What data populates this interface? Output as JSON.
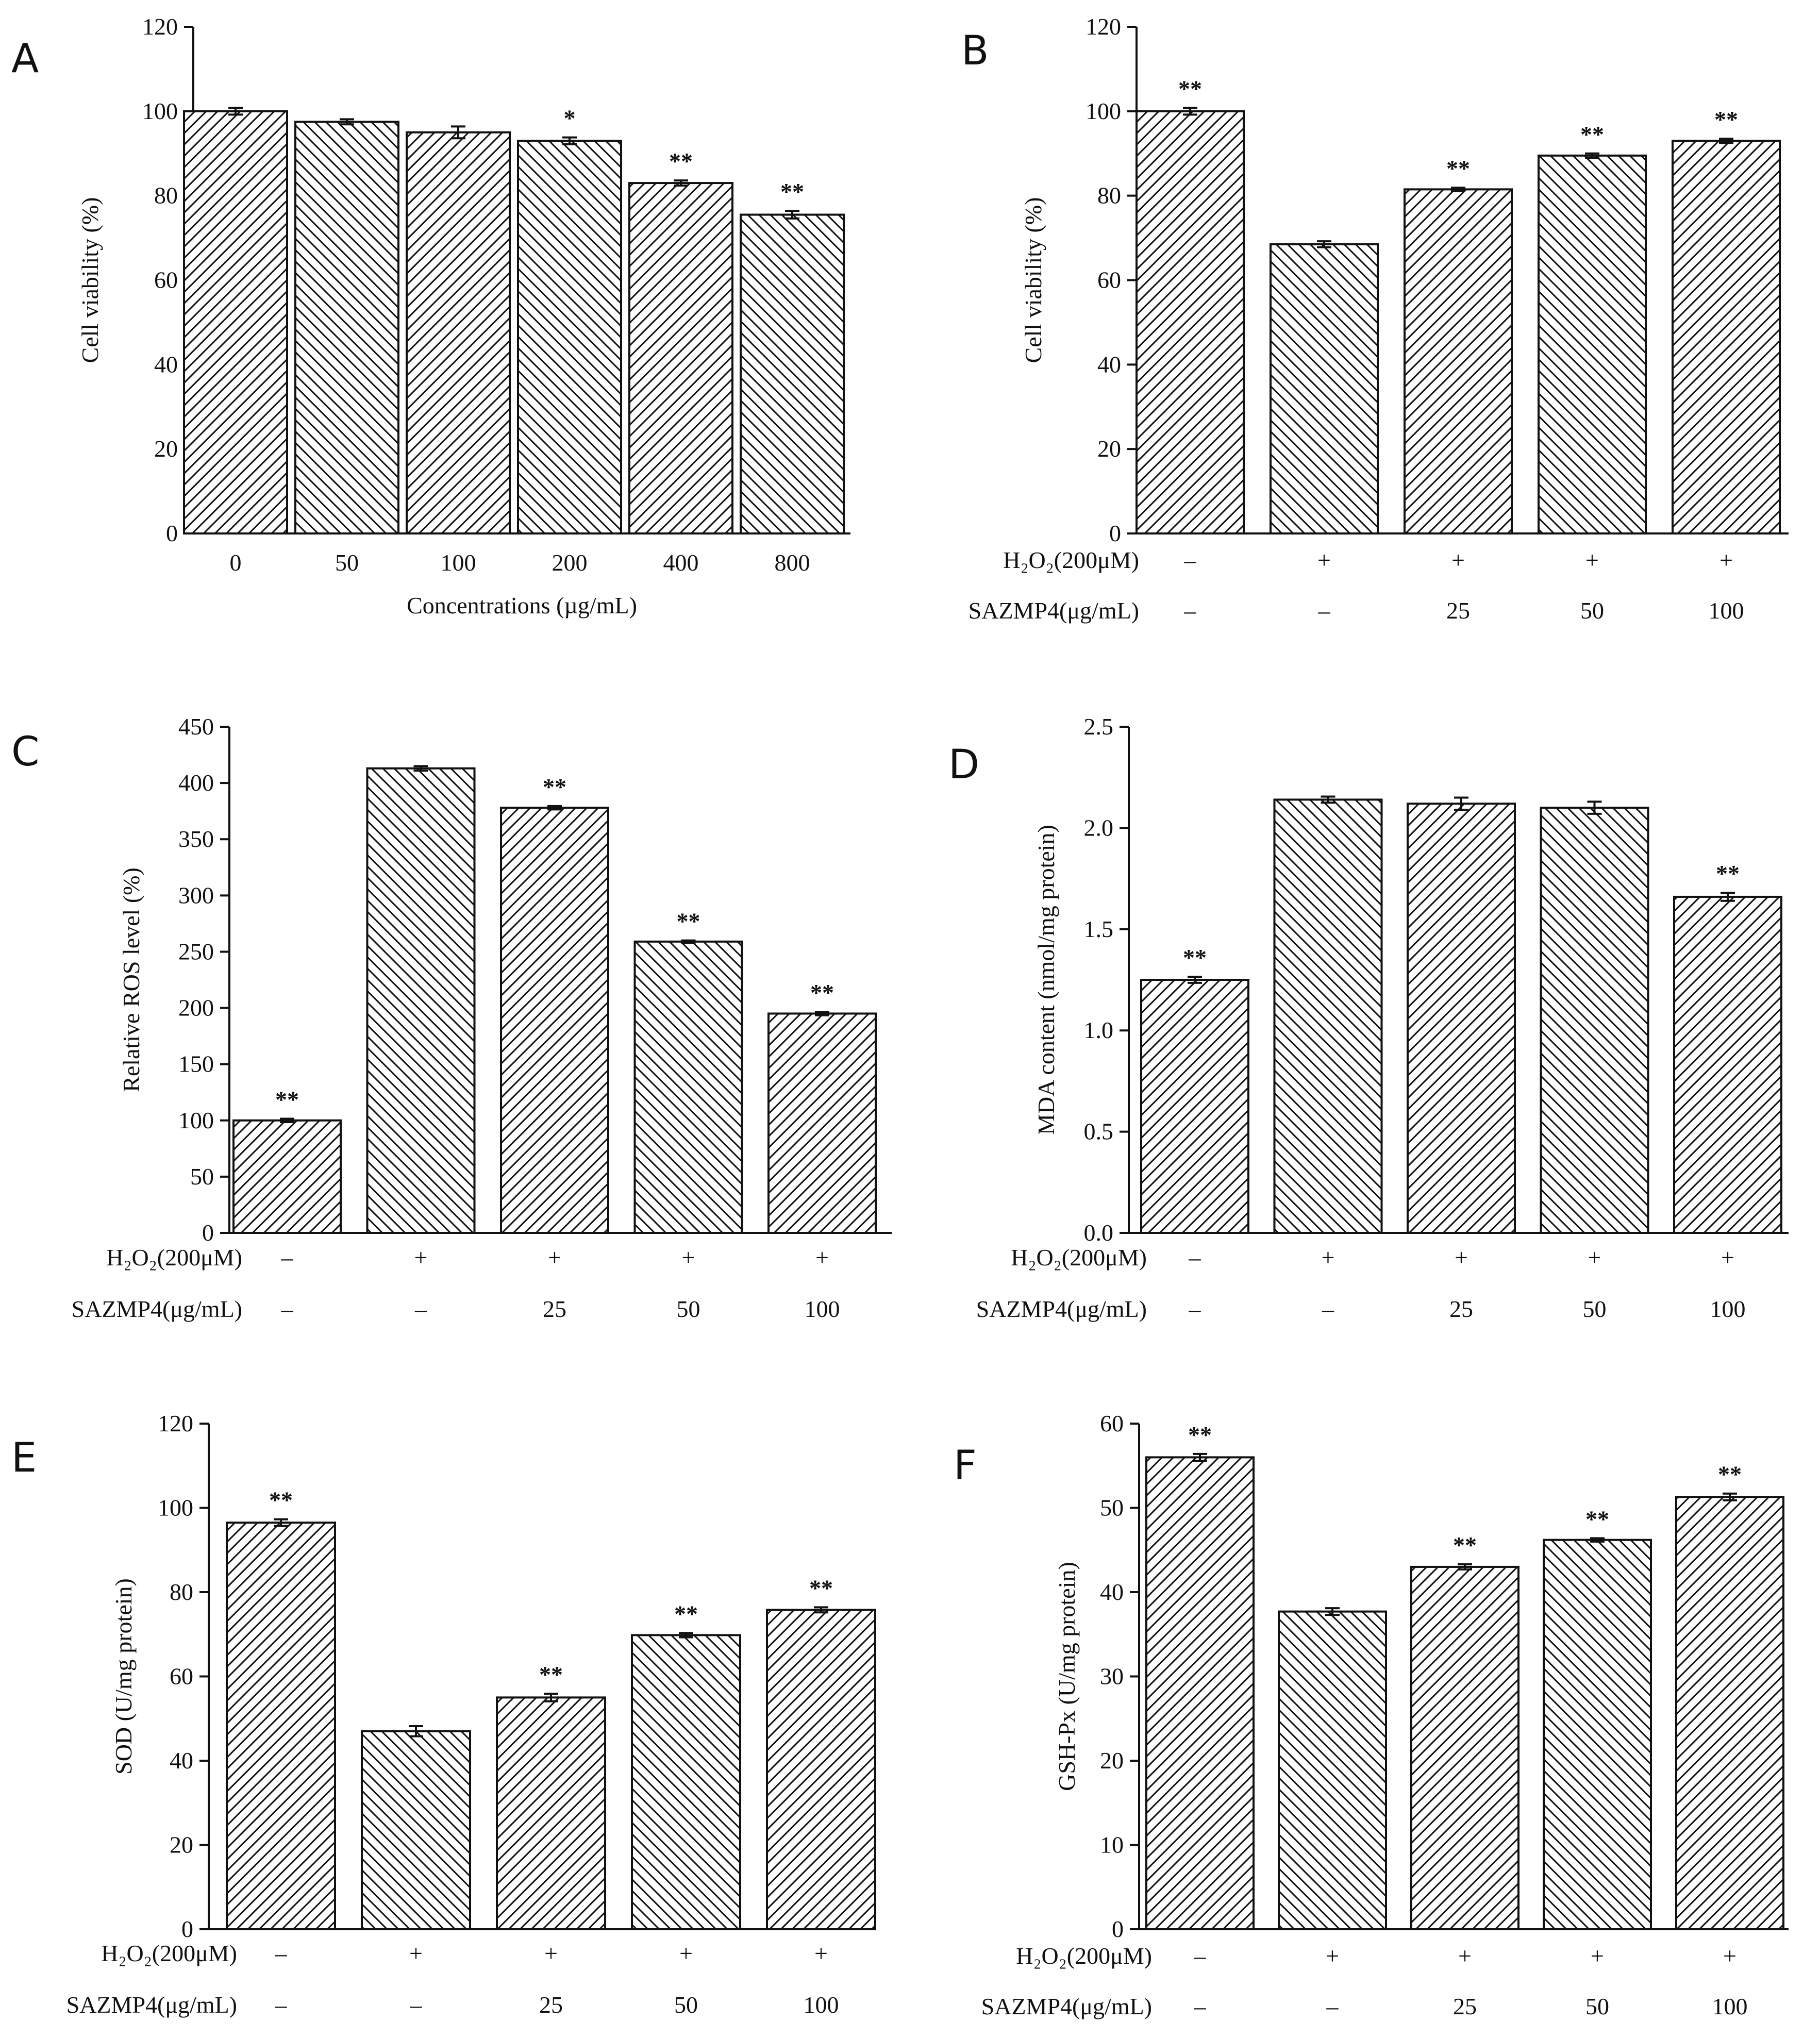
{
  "chart_data": [
    {
      "panel": "A",
      "type": "bar",
      "ylabel": "Cell viability (%)",
      "xlabel": "Concentrations (µg/mL)",
      "ylim": [
        0,
        120
      ],
      "yticks": [
        "0",
        "20",
        "40",
        "60",
        "80",
        "100",
        "120"
      ],
      "categories": [
        "0",
        "50",
        "100",
        "200",
        "400",
        "800"
      ],
      "values": [
        100,
        97.5,
        95,
        93,
        83,
        75.5
      ],
      "errors": [
        0.8,
        0.6,
        1.4,
        0.8,
        0.6,
        0.9
      ],
      "significance": [
        "",
        "",
        "",
        "*",
        "**",
        "**"
      ]
    },
    {
      "panel": "B",
      "type": "bar",
      "ylabel": "Cell viability (%)",
      "ylim": [
        0,
        120
      ],
      "yticks": [
        "0",
        "20",
        "40",
        "60",
        "80",
        "100",
        "120"
      ],
      "row1_label": "H₂O₂(200μM)",
      "row1": [
        "–",
        "+",
        "+",
        "+",
        "+"
      ],
      "row2_label": "SAZMP4(μg/mL)",
      "row2": [
        "–",
        "–",
        "25",
        "50",
        "100"
      ],
      "values": [
        100,
        68.5,
        81.5,
        89.5,
        93
      ],
      "errors": [
        0.8,
        0.7,
        0.4,
        0.5,
        0.5
      ],
      "significance": [
        "**",
        "",
        "**",
        "**",
        "**"
      ]
    },
    {
      "panel": "C",
      "type": "bar",
      "ylabel": "Relative ROS level (%)",
      "ylim": [
        0,
        450
      ],
      "yticks": [
        "0",
        "50",
        "100",
        "150",
        "200",
        "250",
        "300",
        "350",
        "400",
        "450"
      ],
      "row1_label": "H₂O₂(200μM)",
      "row1": [
        "–",
        "+",
        "+",
        "+",
        "+"
      ],
      "row2_label": "SAZMP4(μg/mL)",
      "row2": [
        "–",
        "–",
        "25",
        "50",
        "100"
      ],
      "values": [
        100,
        413,
        378,
        259,
        195
      ],
      "errors": [
        1.5,
        2,
        1.5,
        1,
        1.5
      ],
      "significance": [
        "**",
        "",
        "**",
        "**",
        "**"
      ]
    },
    {
      "panel": "D",
      "type": "bar",
      "ylabel": "MDA content (nmol/mg protein)",
      "ylim": [
        0,
        2.5
      ],
      "yticks": [
        "0.0",
        "0.5",
        "1.0",
        "1.5",
        "2.0",
        "2.5"
      ],
      "row1_label": "H₂O₂(200μM)",
      "row1": [
        "–",
        "+",
        "+",
        "+",
        "+"
      ],
      "row2_label": "SAZMP4(μg/mL)",
      "row2": [
        "–",
        "–",
        "25",
        "50",
        "100"
      ],
      "values": [
        1.25,
        2.14,
        2.12,
        2.1,
        1.66
      ],
      "errors": [
        0.015,
        0.015,
        0.03,
        0.03,
        0.02
      ],
      "significance": [
        "**",
        "",
        "",
        "",
        "**"
      ]
    },
    {
      "panel": "E",
      "type": "bar",
      "ylabel": "SOD (U/mg protein)",
      "ylim": [
        0,
        120
      ],
      "yticks": [
        "0",
        "20",
        "40",
        "60",
        "80",
        "100",
        "120"
      ],
      "row1_label": "H₂O₂(200μM)",
      "row1": [
        "–",
        "+",
        "+",
        "+",
        "+"
      ],
      "row2_label": "SAZMP4(μg/mL)",
      "row2": [
        "–",
        "–",
        "25",
        "50",
        "100"
      ],
      "values": [
        96.5,
        47,
        55,
        69.8,
        75.8
      ],
      "errors": [
        0.8,
        1.2,
        0.9,
        0.5,
        0.6
      ],
      "significance": [
        "**",
        "",
        "**",
        "**",
        "**"
      ]
    },
    {
      "panel": "F",
      "type": "bar",
      "ylabel": "GSH-Px (U/mg protein)",
      "ylim": [
        0,
        60
      ],
      "yticks": [
        "0",
        "10",
        "20",
        "30",
        "40",
        "50",
        "60"
      ],
      "row1_label": "H₂O₂(200μM)",
      "row1": [
        "–",
        "+",
        "+",
        "+",
        "+"
      ],
      "row2_label": "SAZMP4(μg/mL)",
      "row2": [
        "–",
        "–",
        "25",
        "50",
        "100"
      ],
      "values": [
        56,
        37.7,
        43,
        46.2,
        51.3
      ],
      "errors": [
        0.4,
        0.4,
        0.3,
        0.2,
        0.4
      ],
      "significance": [
        "**",
        "",
        "**",
        "**",
        "**"
      ]
    }
  ]
}
